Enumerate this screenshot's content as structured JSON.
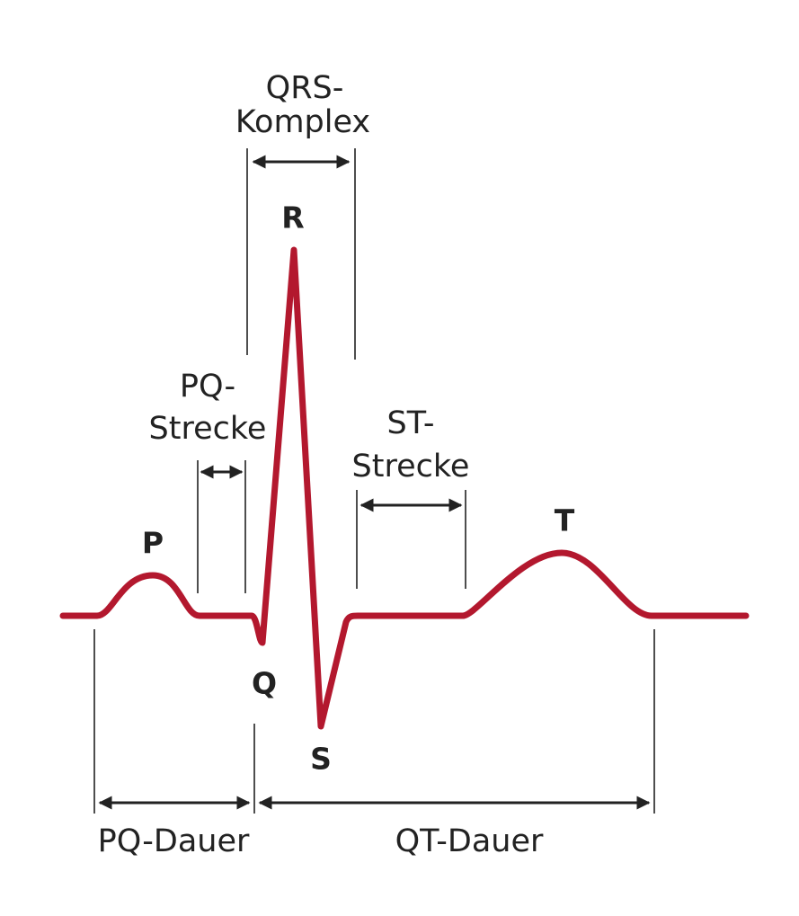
{
  "waves": [
    {
      "label": "P"
    },
    {
      "label": "Q"
    },
    {
      "label": "R"
    },
    {
      "label": "S"
    },
    {
      "label": "T"
    }
  ],
  "intervals": [
    {
      "lines": [
        "QRS-",
        "Komplex"
      ]
    },
    {
      "lines": [
        "PQ-",
        "Strecke"
      ]
    },
    {
      "lines": [
        "ST-",
        "Strecke"
      ]
    },
    {
      "lines": [
        "PQ-Dauer"
      ]
    },
    {
      "lines": [
        "QT-Dauer"
      ]
    }
  ]
}
